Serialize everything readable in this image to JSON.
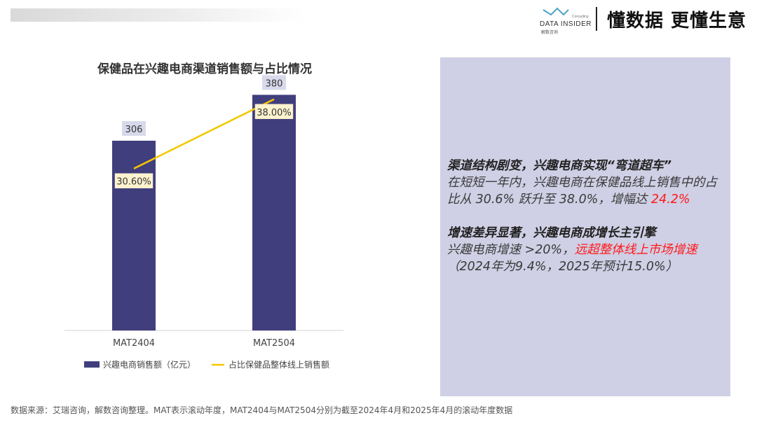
{
  "header": {
    "logo_en": "DATA INSIDER",
    "logo_cn": "解数咨询",
    "logo_sub": "Consulting",
    "slogan": "懂数据 更懂生意"
  },
  "chart_data": {
    "type": "bar",
    "title": "保健品在兴趣电商渠道销售额与占比情况",
    "categories": [
      "MAT2404",
      "MAT2504"
    ],
    "series": [
      {
        "name": "兴趣电商销售额（亿元）",
        "type": "bar",
        "values": [
          306,
          380
        ],
        "labels": [
          "306",
          "380"
        ]
      },
      {
        "name": "占比保健品整体线上销售额",
        "type": "line",
        "values": [
          30.6,
          38.0
        ],
        "labels": [
          "30.60%",
          "38.00%"
        ]
      }
    ],
    "legend_position": "bottom",
    "grid": false,
    "colors": {
      "bar": "#413e7d",
      "line": "#f5c800"
    }
  },
  "panel": {
    "p1_head": "渠道结构剧变，兴趣电商实现“弯道超车”",
    "p1_body": "在短短一年内，兴趣电商在保健品线上销售中的占比从 30.6% 跃升至 38.0%，增幅达",
    "p1_highlight": "24.2%",
    "p2_head": "增速差异显著，兴趣电商成增长主引擎",
    "p2_body1": "兴趣电商增速 >20%，",
    "p2_highlight": "远超整体线上市场增速",
    "p2_body2": "（2024年为9.4%，2025年预计15.0%）"
  },
  "footer": {
    "source": "数据来源：艾瑞咨询，解数咨询整理。MAT表示滚动年度，MAT2404与MAT2504分别为截至2024年4月和2025年4月的滚动年度数据"
  }
}
